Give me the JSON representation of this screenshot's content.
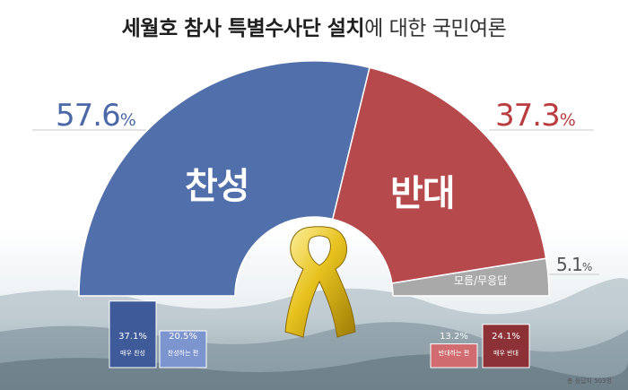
{
  "title": {
    "bold": "세월호 참사 특별수사단 설치",
    "light": "에 대한 국민여론"
  },
  "note": "총 응답자 503명",
  "colors": {
    "agree": "#516fab",
    "agree_light": "#7d95cf",
    "agree_dark": "#3e5a98",
    "disagree": "#b5494c",
    "disagree_light": "#d06b70",
    "disagree_dark": "#8c3237",
    "unknown": "#a9a9a9"
  },
  "chart_data": {
    "type": "pie",
    "title": "세월호 참사 특별수사단 설치에 대한 국민여론",
    "categories": [
      "찬성",
      "반대",
      "모름/무응답"
    ],
    "values": [
      57.6,
      37.3,
      5.1
    ],
    "labels": [
      {
        "name": "찬성",
        "pct": "57.6",
        "suffix": "%"
      },
      {
        "name": "반대",
        "pct": "37.3",
        "suffix": "%"
      },
      {
        "name": "모름/무응답",
        "pct": "5.1",
        "suffix": "%"
      }
    ],
    "breakdown": {
      "type": "bar",
      "categories": [
        "매우 찬성",
        "찬성하는 편",
        "반대하는 편",
        "매우 반대"
      ],
      "values": [
        37.1,
        20.5,
        13.2,
        24.1
      ],
      "value_labels": [
        "37.1%",
        "20.5%",
        "13.2%",
        "24.1%"
      ]
    }
  }
}
